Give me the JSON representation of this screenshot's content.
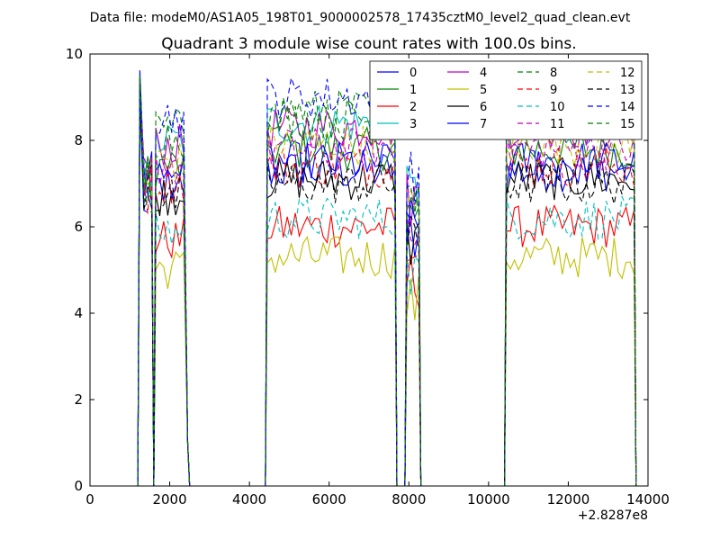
{
  "chart_data": {
    "type": "line",
    "suptitle": "Data file: modeM0/AS1A05_198T01_9000002578_17435cztM0_level2_quad_clean.evt",
    "title": "Quadrant 3 module wise count rates with 100.0s bins.",
    "xlabel": "",
    "ylabel": "",
    "x_offset_label": "+2.8287e8",
    "xlim": [
      0,
      14000
    ],
    "ylim": [
      0,
      10
    ],
    "x_ticks": [
      0,
      2000,
      4000,
      6000,
      8000,
      10000,
      12000,
      14000
    ],
    "y_ticks": [
      0,
      2,
      4,
      6,
      8,
      10
    ],
    "grid": false,
    "legend_position": "top-right",
    "segments": [
      {
        "x_start": 1250,
        "x_end": 1550,
        "step": 100
      },
      {
        "x_start": 1650,
        "x_end": 2450,
        "step": 100
      },
      {
        "x_start": 4450,
        "x_end": 7650,
        "step": 100
      },
      {
        "x_start": 7950,
        "x_end": 8250,
        "step": 100
      },
      {
        "x_start": 10450,
        "x_end": 13650,
        "step": 100
      }
    ],
    "series": [
      {
        "name": "0",
        "color": "#0000ff",
        "dash": "solid",
        "level": 7.3
      },
      {
        "name": "1",
        "color": "#008000",
        "dash": "solid",
        "level": 7.8
      },
      {
        "name": "2",
        "color": "#ff0000",
        "dash": "solid",
        "level": 6.0
      },
      {
        "name": "3",
        "color": "#00bfbf",
        "dash": "solid",
        "level": 8.4
      },
      {
        "name": "4",
        "color": "#bf00bf",
        "dash": "solid",
        "level": 8.3
      },
      {
        "name": "5",
        "color": "#bfbf00",
        "dash": "solid",
        "level": 5.3
      },
      {
        "name": "6",
        "color": "#000000",
        "dash": "solid",
        "level": 7.1
      },
      {
        "name": "7",
        "color": "#0000ff",
        "dash": "solid",
        "level": 7.5
      },
      {
        "name": "8",
        "color": "#008000",
        "dash": "dashed",
        "level": 8.7
      },
      {
        "name": "9",
        "color": "#ff0000",
        "dash": "dashed",
        "level": 7.4
      },
      {
        "name": "10",
        "color": "#00bfbf",
        "dash": "dashed",
        "level": 6.2
      },
      {
        "name": "11",
        "color": "#bf00bf",
        "dash": "dashed",
        "level": 7.8
      },
      {
        "name": "12",
        "color": "#bfbf00",
        "dash": "dashed",
        "level": 7.9
      },
      {
        "name": "13",
        "color": "#000000",
        "dash": "dashed",
        "level": 7.0
      },
      {
        "name": "14",
        "color": "#0000ff",
        "dash": "dashed",
        "level": 9.0
      },
      {
        "name": "15",
        "color": "#008000",
        "dash": "dashed",
        "level": 8.5
      }
    ]
  }
}
